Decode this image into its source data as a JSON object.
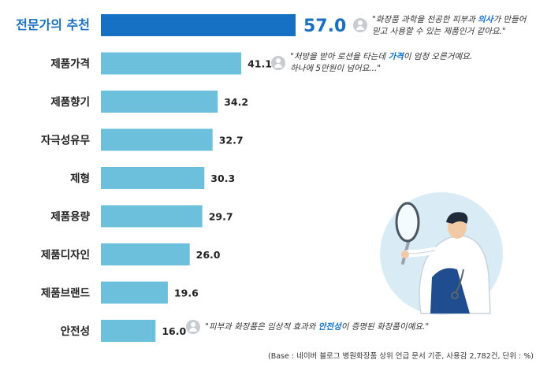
{
  "chart_data": {
    "type": "bar",
    "orientation": "horizontal",
    "categories": [
      "전문가의 추천",
      "제품가격",
      "제품향기",
      "자극성유무",
      "제형",
      "제품용량",
      "제품디자인",
      "제품브랜드",
      "안전성"
    ],
    "values": [
      57.0,
      41.1,
      34.2,
      32.7,
      30.3,
      29.7,
      26.0,
      19.6,
      16.0
    ],
    "value_labels": [
      "57.0",
      "41.1",
      "34.2",
      "32.7",
      "30.3",
      "29.7",
      "26.0",
      "19.6",
      "16.0"
    ],
    "highlight_index": 0,
    "xlim": [
      0,
      57.0
    ],
    "grid": false,
    "legend": "none"
  },
  "colors": {
    "highlight_bar": "#1670c4",
    "bar": "#6cc0dc",
    "highlight_label": "#1a6fc0",
    "label": "#222222"
  },
  "quotes": [
    {
      "line1_a": "\"화장품 과학을 전공한 피부과 ",
      "line1_hl": "의사",
      "line1_b": "가 만들어",
      "line2": "믿고 사용할 수 있는 제품인거 같아요.\"",
      "icon": "user-avatar-icon"
    },
    {
      "line1_a": "\"처방을 받아 로션을 타는데 ",
      "line1_hl": "가격",
      "line1_b": "이 엄청 오른거예요.",
      "line2": "하나에 5만원이 넘어요...\"",
      "icon": "user-avatar-icon"
    },
    {
      "line1_a": "\"피부과 화장품은 임상적 효과와 ",
      "line1_hl": "안전성",
      "line1_b": "이 증명된 화장품이예요.\"",
      "icon": "user-avatar-icon"
    }
  ],
  "footnote": "(Base : 네이버 블로그 병원화장품 상위 언급 문서 기준, 사용감 2,782건, 단위 : %)",
  "illustration": {
    "icon": "doctor-with-magnifier-icon"
  }
}
